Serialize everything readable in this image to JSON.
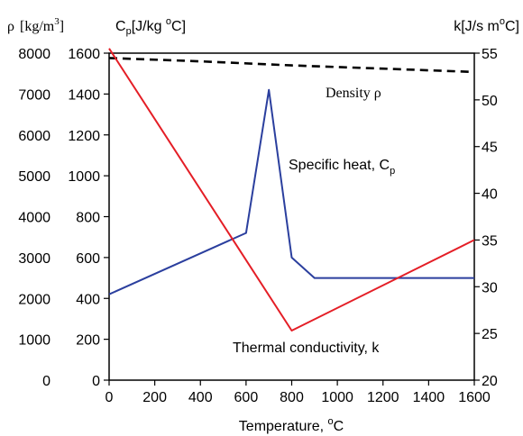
{
  "chart_data": {
    "type": "line",
    "x_axis": {
      "label": "Temperature, °C",
      "label_main": "Temperature, ",
      "label_sup": "o",
      "label_unit": "C",
      "range": [
        0,
        1600
      ],
      "ticks": [
        "0",
        "200",
        "400",
        "600",
        "800",
        "1000",
        "1200",
        "1400",
        "1600"
      ]
    },
    "y_left_outer": {
      "label": "ρ [kg/m³]",
      "label_rho": "ρ",
      "label_unit": "[kg/m",
      "label_sup": "3",
      "label_close": "]",
      "range": [
        0,
        8000
      ],
      "ticks": [
        "0",
        "1000",
        "2000",
        "3000",
        "4000",
        "5000",
        "6000",
        "7000",
        "8000"
      ]
    },
    "y_left_inner": {
      "label": "Cp[J/kg°C]",
      "label_c": "C",
      "label_sub": "p",
      "label_unit": "[J/kg ",
      "label_sup": "o",
      "label_end": "C]",
      "range": [
        0,
        1600
      ],
      "ticks": [
        "0",
        "200",
        "400",
        "600",
        "800",
        "1000",
        "1200",
        "1400",
        "1600"
      ]
    },
    "y_right": {
      "label": "k[J/s m°C]",
      "label_main": "k[J/s m",
      "label_sup": "o",
      "label_end": "C]",
      "range": [
        20,
        55
      ],
      "ticks": [
        "20",
        "25",
        "30",
        "35",
        "40",
        "45",
        "50",
        "55"
      ]
    },
    "series": [
      {
        "name": "Density ρ",
        "axis": "y_left_outer",
        "color": "#000000",
        "style": "dashed",
        "x": [
          0,
          400,
          800,
          1200,
          1600
        ],
        "y": [
          7880,
          7800,
          7700,
          7620,
          7540
        ]
      },
      {
        "name": "Specific heat, Cp",
        "axis": "y_left_inner",
        "color": "#2b3f9e",
        "style": "solid",
        "x": [
          0,
          600,
          700,
          800,
          900,
          1600
        ],
        "y": [
          420,
          720,
          1420,
          600,
          500,
          500
        ]
      },
      {
        "name": "Thermal conductivity, k",
        "axis": "y_right",
        "color": "#e41e26",
        "style": "solid",
        "x": [
          0,
          800,
          1600
        ],
        "y": [
          55.5,
          25.3,
          35.0
        ]
      }
    ],
    "annotations": {
      "density": "Density ",
      "density_sym": "ρ",
      "cp_main": "Specific heat, C",
      "cp_sub": "p",
      "k_label": "Thermal conductivity, k"
    },
    "grid": false
  }
}
